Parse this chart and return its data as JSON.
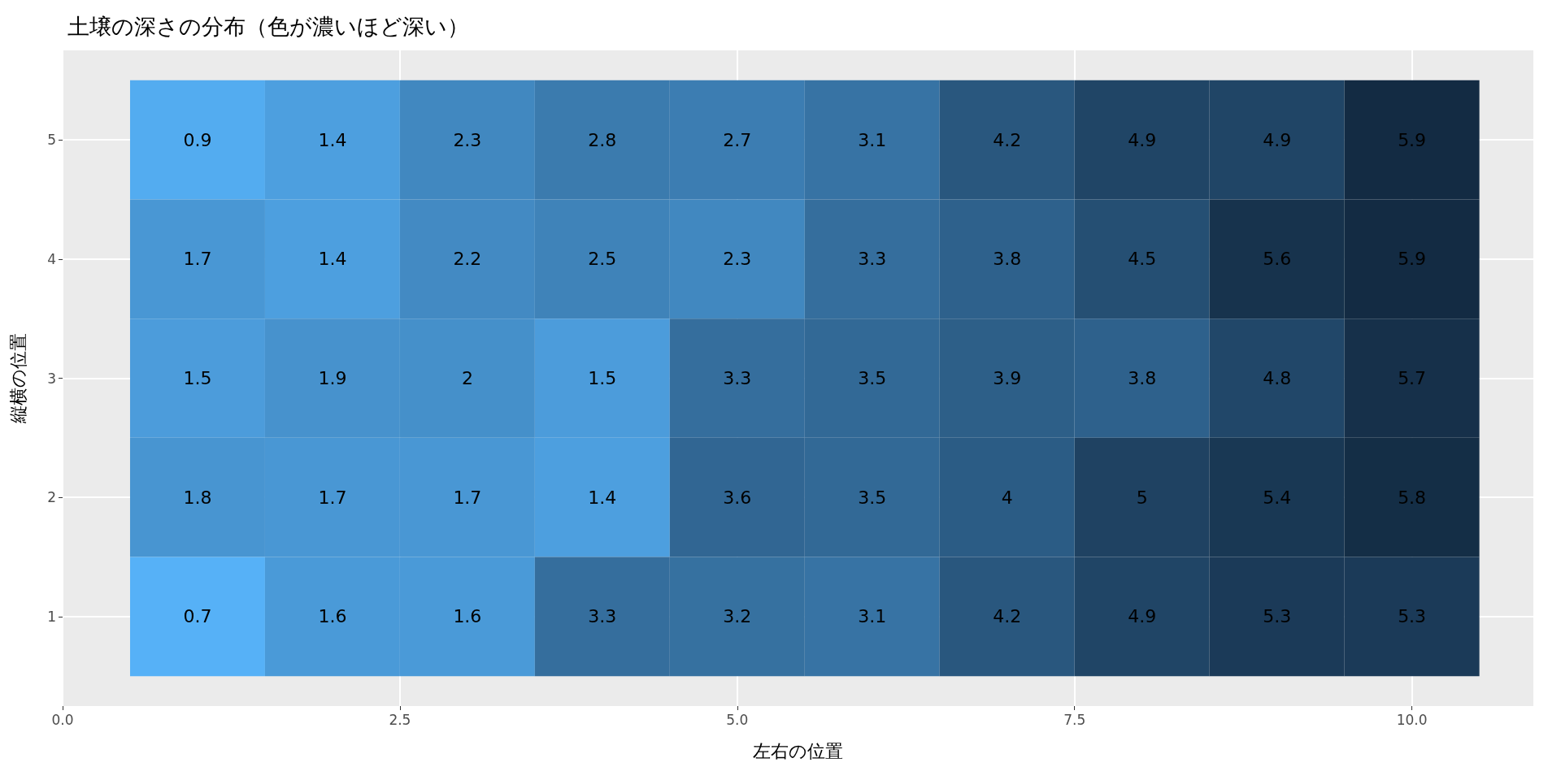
{
  "chart_data": {
    "type": "heatmap",
    "title": "土壌の深さの分布（色が濃いほど深い）",
    "xlabel": "左右の位置",
    "ylabel": "縦横の位置",
    "x": [
      1,
      2,
      3,
      4,
      5,
      6,
      7,
      8,
      9,
      10
    ],
    "xlim": [
      0,
      10.9
    ],
    "xticks": [
      {
        "value": 0,
        "label": "0.0"
      },
      {
        "value": 2.5,
        "label": "2.5"
      },
      {
        "value": 5,
        "label": "5.0"
      },
      {
        "value": 7.5,
        "label": "7.5"
      },
      {
        "value": 10,
        "label": "10.0"
      }
    ],
    "y_categories": [
      "5",
      "4",
      "3",
      "2",
      "1"
    ],
    "cells": [
      [
        0.9,
        1.4,
        2.3,
        2.8,
        2.7,
        3.1,
        4.2,
        4.9,
        4.9,
        5.9
      ],
      [
        1.7,
        1.4,
        2.2,
        2.5,
        2.3,
        3.3,
        3.8,
        4.5,
        5.6,
        5.9
      ],
      [
        1.5,
        1.9,
        2,
        1.5,
        3.3,
        3.5,
        3.9,
        3.8,
        4.8,
        5.7
      ],
      [
        1.8,
        1.7,
        1.7,
        1.4,
        3.6,
        3.5,
        4,
        5,
        5.4,
        5.8
      ],
      [
        0.7,
        1.6,
        1.6,
        3.3,
        3.2,
        3.1,
        4.2,
        4.9,
        5.3,
        5.3
      ]
    ],
    "colors": [
      "#56b1f7",
      "#132b43"
    ],
    "data_labels": true,
    "grid": true
  }
}
